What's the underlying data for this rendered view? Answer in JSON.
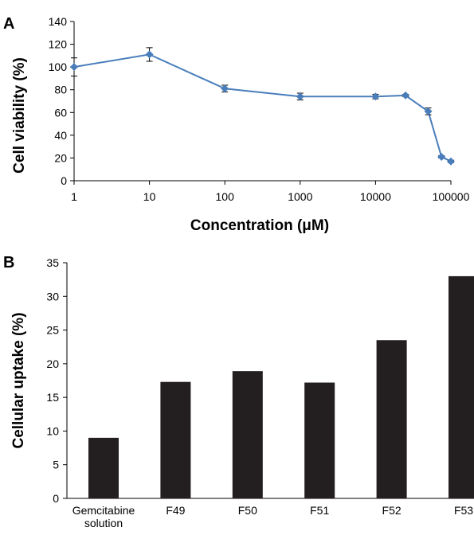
{
  "chart_data": [
    {
      "panel": "A",
      "type": "line",
      "x_scale": "log",
      "xlabel": "Concentration (μM)",
      "ylabel": "Cell viability (%)",
      "xlim": [
        1,
        100000
      ],
      "ylim": [
        0,
        140
      ],
      "x_ticks": [
        "1",
        "10",
        "100",
        "1000",
        "10000",
        "100000"
      ],
      "y_ticks": [
        "0",
        "20",
        "40",
        "60",
        "80",
        "100",
        "120",
        "140"
      ],
      "grid": false,
      "legend": "none",
      "series": [
        {
          "color": "#4A7EBB",
          "marker": "diamond",
          "x": [
            1,
            10,
            100,
            1000,
            10000,
            25000,
            50000,
            75000,
            100000
          ],
          "y": [
            100,
            111,
            81,
            74,
            74,
            75,
            61,
            21,
            17
          ],
          "error": [
            8,
            6,
            3,
            3,
            2,
            1,
            3,
            1,
            1
          ]
        }
      ]
    },
    {
      "panel": "B",
      "type": "bar",
      "ylabel": "Cellular uptake (%)",
      "xlabel": "",
      "ylim": [
        0,
        35
      ],
      "y_ticks": [
        "0",
        "5",
        "10",
        "15",
        "20",
        "25",
        "30",
        "35"
      ],
      "grid": false,
      "legend": "none",
      "bar_color": "#231F20",
      "categories": [
        [
          "Gemcitabine",
          "solution"
        ],
        [
          "F49"
        ],
        [
          "F50"
        ],
        [
          "F51"
        ],
        [
          "F52"
        ],
        [
          "F53"
        ]
      ],
      "values": [
        9.0,
        17.3,
        18.9,
        17.2,
        23.5,
        33.0
      ]
    }
  ]
}
